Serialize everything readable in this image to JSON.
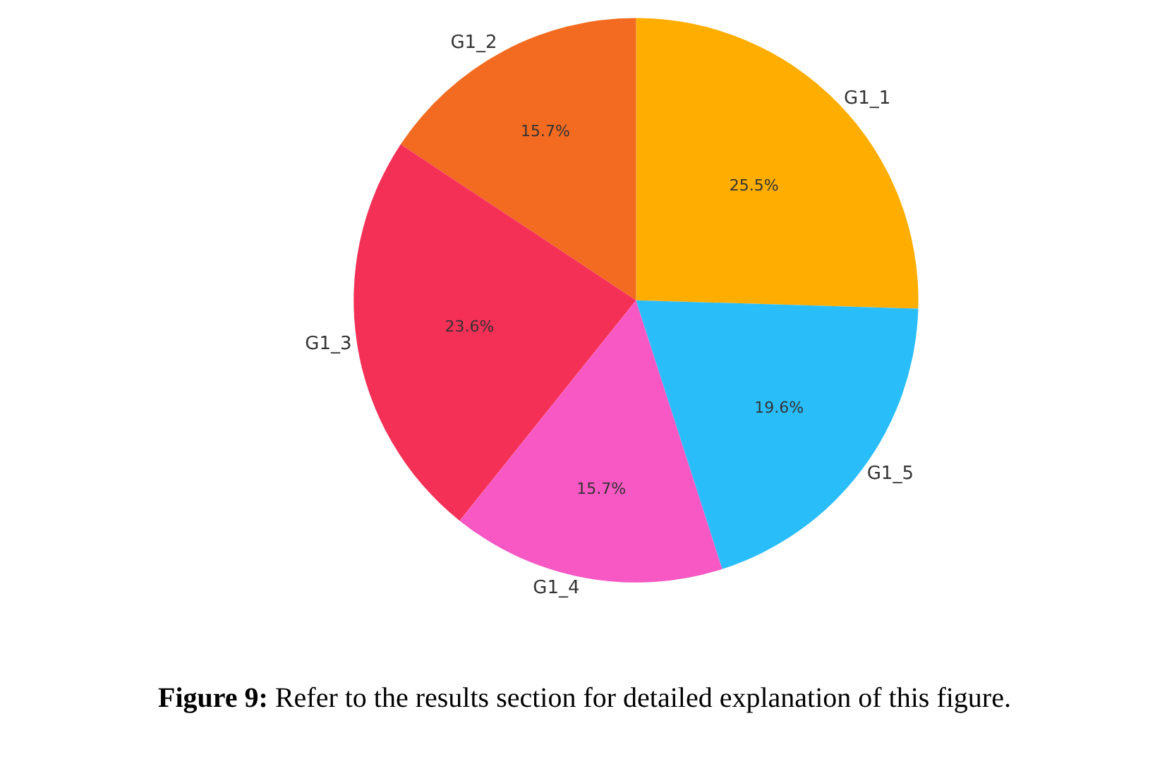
{
  "chart_data": {
    "type": "pie",
    "categories": [
      "G1_1",
      "G1_2",
      "G1_3",
      "G1_4",
      "G1_5"
    ],
    "values": [
      25.5,
      15.7,
      23.6,
      15.7,
      19.6
    ],
    "value_labels": [
      "25.5%",
      "15.7%",
      "23.6%",
      "15.7%",
      "19.6%"
    ],
    "colors": [
      "#ffae00",
      "#f26b21",
      "#f53057",
      "#f758c4",
      "#29bdfa"
    ],
    "annotations": [
      "Figure 9: Refer to the results section for detailed explanation of this figure."
    ],
    "legend": false
  }
}
